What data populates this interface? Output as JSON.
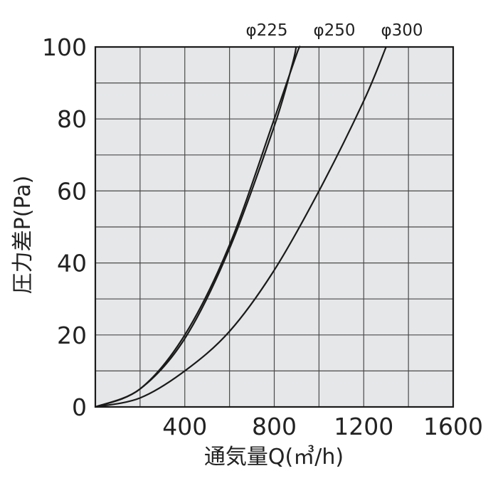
{
  "chart_data": {
    "type": "line",
    "xlabel": "通気量Q(㎥/h)",
    "ylabel": "圧力差P(Pa)",
    "xlim": [
      0,
      1600
    ],
    "ylim": [
      0,
      100
    ],
    "x_ticks": [
      {
        "value": 400,
        "label": "400"
      },
      {
        "value": 800,
        "label": "800"
      },
      {
        "value": 1200,
        "label": "1200"
      },
      {
        "value": 1600,
        "label": "1600"
      }
    ],
    "y_ticks": [
      {
        "value": 0,
        "label": "0"
      },
      {
        "value": 20,
        "label": "20"
      },
      {
        "value": 40,
        "label": "40"
      },
      {
        "value": 60,
        "label": "60"
      },
      {
        "value": 80,
        "label": "80"
      },
      {
        "value": 100,
        "label": "100"
      }
    ],
    "x_grid_step": 200,
    "y_grid_step": 10,
    "grid": true,
    "plot_background": "#e6e7e9",
    "line_color": "#1a1a1a",
    "series": [
      {
        "name": "φ225",
        "x": [
          0,
          200,
          400,
          600,
          800,
          900,
          915
        ],
        "y": [
          0,
          5,
          20,
          45,
          80,
          98,
          100
        ]
      },
      {
        "name": "φ250",
        "x": [
          0,
          200,
          400,
          600,
          800,
          880,
          898
        ],
        "y": [
          0,
          5,
          19,
          44,
          78,
          95,
          100
        ]
      },
      {
        "name": "φ300",
        "x": [
          0,
          200,
          400,
          600,
          800,
          1000,
          1200,
          1300
        ],
        "y": [
          0,
          2.5,
          10,
          21,
          38,
          60,
          85,
          100
        ]
      }
    ]
  }
}
